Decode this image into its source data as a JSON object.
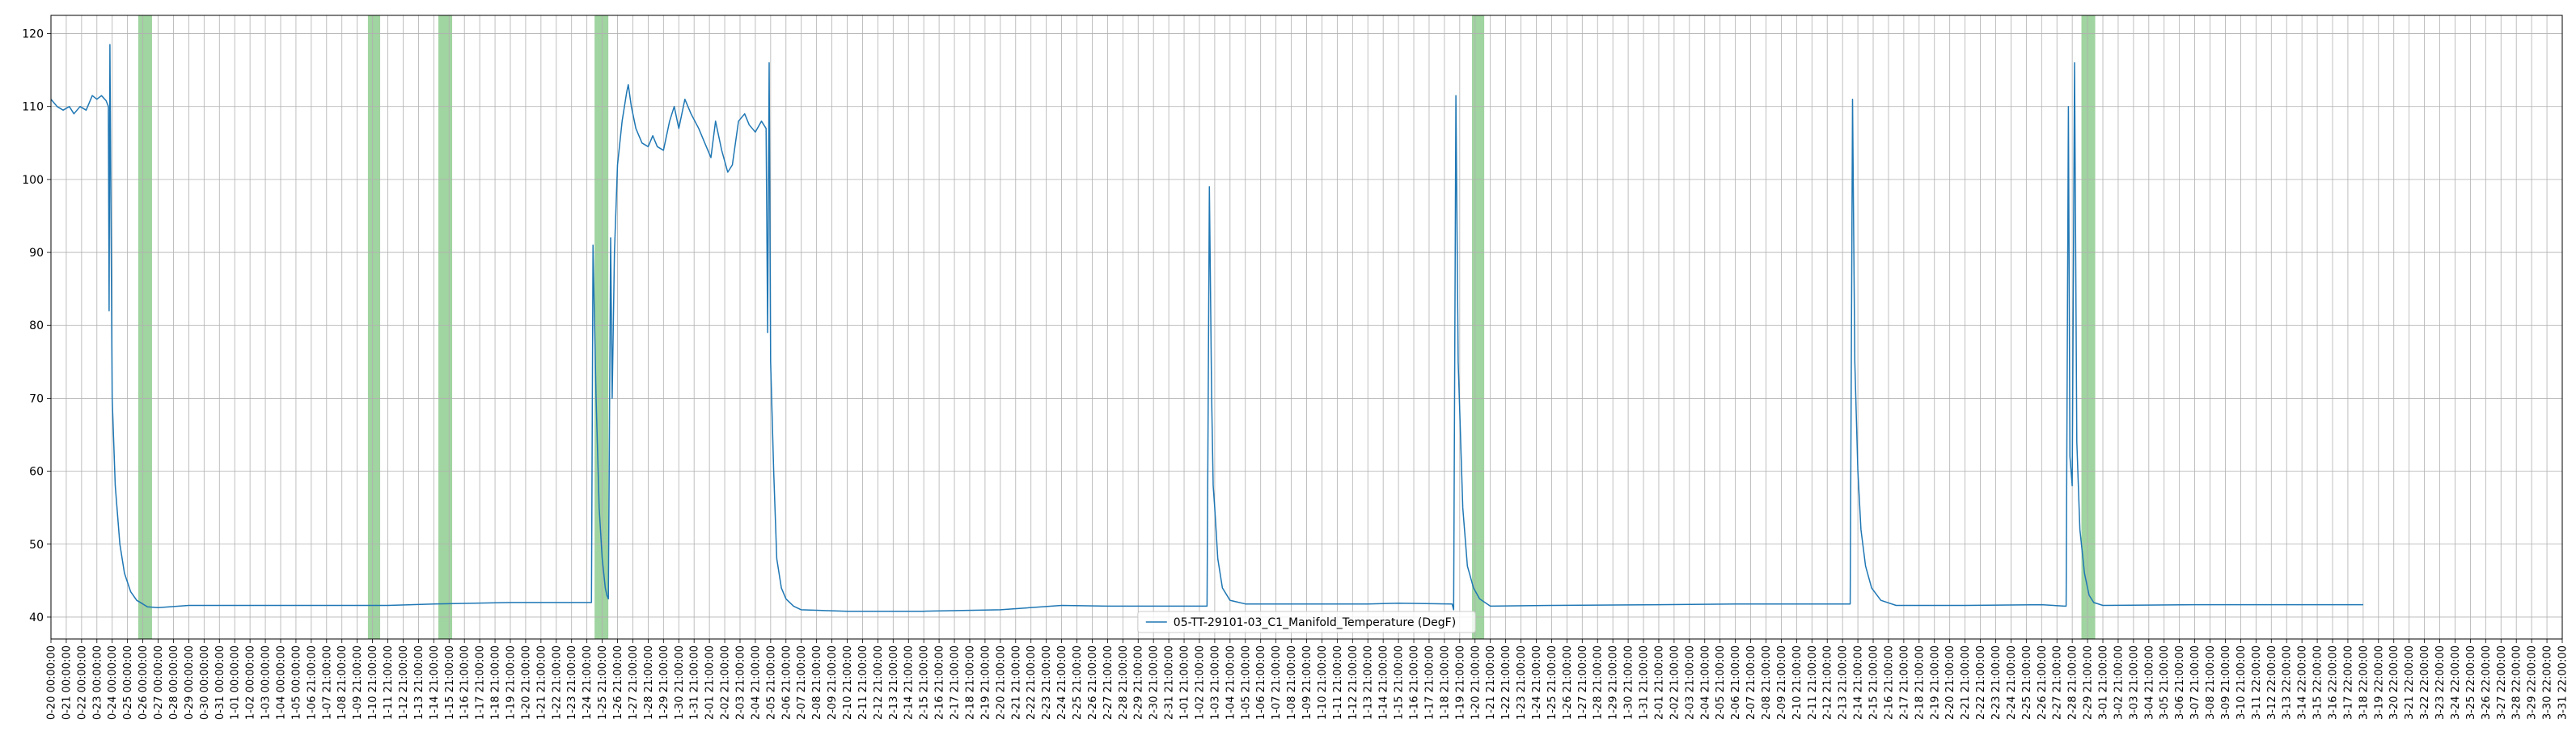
{
  "chart_data": {
    "type": "line",
    "title": "",
    "xlabel": "",
    "ylabel": "",
    "ylim": [
      37,
      122.5
    ],
    "yticks": [
      40,
      50,
      60,
      70,
      80,
      90,
      100,
      110,
      120
    ],
    "grid": true,
    "legend_placement": "bottom-center",
    "x_tick_labels": [
      "0-20 00:00:00",
      "0-21 00:00:00",
      "0-22 00:00:00",
      "0-23 00:00:00",
      "0-24 00:00:00",
      "0-25 00:00:00",
      "0-26 00:00:00",
      "0-27 00:00:00",
      "0-28 00:00:00",
      "0-29 00:00:00",
      "0-30 00:00:00",
      "0-31 00:00:00",
      "1-01 00:00:00",
      "1-02 00:00:00",
      "1-03 00:00:00",
      "1-04 00:00:00",
      "1-05 00:00:00",
      "1-06 21:00:00",
      "1-07 21:00:00",
      "1-08 21:00:00",
      "1-09 21:00:00",
      "1-10 21:00:00",
      "1-11 21:00:00",
      "1-12 21:00:00",
      "1-13 21:00:00",
      "1-14 21:00:00",
      "1-15 21:00:00",
      "1-16 21:00:00",
      "1-17 21:00:00",
      "1-18 21:00:00",
      "1-19 21:00:00",
      "1-20 21:00:00",
      "1-21 21:00:00",
      "1-22 21:00:00",
      "1-23 21:00:00",
      "1-24 21:00:00",
      "1-25 21:00:00",
      "1-26 21:00:00",
      "1-27 21:00:00",
      "1-28 21:00:00",
      "1-29 21:00:00",
      "1-30 21:00:00",
      "1-31 21:00:00",
      "2-01 21:00:00",
      "2-02 21:00:00",
      "2-03 21:00:00",
      "2-04 21:00:00",
      "2-05 21:00:00",
      "2-06 21:00:00",
      "2-07 21:00:00",
      "2-08 21:00:00",
      "2-09 21:00:00",
      "2-10 21:00:00",
      "2-11 21:00:00",
      "2-12 21:00:00",
      "2-13 21:00:00",
      "2-14 21:00:00",
      "2-15 21:00:00",
      "2-16 21:00:00",
      "2-17 21:00:00",
      "2-18 21:00:00",
      "2-19 21:00:00",
      "2-20 21:00:00",
      "2-21 21:00:00",
      "2-22 21:00:00",
      "2-23 21:00:00",
      "2-24 21:00:00",
      "2-25 21:00:00",
      "2-26 21:00:00",
      "2-27 21:00:00",
      "2-28 21:00:00",
      "2-29 21:00:00",
      "2-30 21:00:00",
      "2-31 21:00:00",
      "1-01 21:00:00",
      "1-02 21:00:00",
      "1-03 21:00:00",
      "1-04 21:00:00",
      "1-05 21:00:00",
      "1-06 21:00:00",
      "1-07 21:00:00",
      "1-08 21:00:00",
      "1-09 21:00:00",
      "1-10 21:00:00",
      "1-11 21:00:00",
      "1-12 21:00:00",
      "1-13 21:00:00",
      "1-14 21:00:00",
      "1-15 21:00:00",
      "1-16 21:00:00",
      "1-17 21:00:00",
      "1-18 21:00:00",
      "1-19 21:00:00",
      "1-20 21:00:00",
      "1-21 21:00:00",
      "1-22 21:00:00",
      "1-23 21:00:00",
      "1-24 21:00:00",
      "1-25 21:00:00",
      "1-26 21:00:00",
      "1-27 21:00:00",
      "1-28 21:00:00",
      "1-29 21:00:00",
      "1-30 21:00:00",
      "1-31 21:00:00",
      "2-01 21:00:00",
      "2-02 21:00:00",
      "2-03 21:00:00",
      "2-04 21:00:00",
      "2-05 21:00:00",
      "2-06 21:00:00",
      "2-07 21:00:00",
      "2-08 21:00:00",
      "2-09 21:00:00",
      "2-10 21:00:00",
      "2-11 21:00:00",
      "2-12 21:00:00",
      "2-13 21:00:00",
      "2-14 21:00:00",
      "2-15 21:00:00",
      "2-16 21:00:00",
      "2-17 21:00:00",
      "2-18 21:00:00",
      "2-19 21:00:00",
      "2-20 21:00:00",
      "2-21 21:00:00",
      "2-22 21:00:00",
      "2-23 21:00:00",
      "2-24 21:00:00",
      "2-25 21:00:00",
      "2-26 21:00:00",
      "2-27 21:00:00",
      "2-28 21:00:00",
      "2-29 21:00:00",
      "3-01 21:00:00",
      "3-02 21:00:00",
      "3-03 21:00:00",
      "3-04 21:00:00",
      "3-05 21:00:00",
      "3-06 21:00:00",
      "3-07 21:00:00",
      "3-08 21:00:00",
      "3-09 21:00:00",
      "3-10 21:00:00",
      "3-11 22:00:00",
      "3-12 22:00:00",
      "3-13 22:00:00",
      "3-14 22:00:00",
      "3-15 22:00:00",
      "3-16 22:00:00",
      "3-17 22:00:00",
      "3-18 22:00:00",
      "3-19 22:00:00",
      "3-20 22:00:00",
      "3-21 22:00:00",
      "3-22 22:00:00",
      "3-23 22:00:00",
      "3-24 22:00:00",
      "3-25 22:00:00",
      "3-26 22:00:00",
      "3-27 22:00:00",
      "3-28 22:00:00",
      "3-29 22:00:00",
      "3-30 22:00:00",
      "3-31 22:00:00"
    ],
    "series": [
      {
        "name": "05-TT-29101-03_C1_Manifold_Temperature (DegF)",
        "color": "#1f77b4",
        "points": [
          [
            0,
            111
          ],
          [
            0.4,
            110
          ],
          [
            0.8,
            109.5
          ],
          [
            1.2,
            110
          ],
          [
            1.5,
            109
          ],
          [
            1.9,
            110
          ],
          [
            2.3,
            109.5
          ],
          [
            2.7,
            111.5
          ],
          [
            3.0,
            111
          ],
          [
            3.3,
            111.5
          ],
          [
            3.6,
            110.8
          ],
          [
            3.75,
            110
          ],
          [
            3.8,
            82
          ],
          [
            3.85,
            118.5
          ],
          [
            4.0,
            70
          ],
          [
            4.2,
            58
          ],
          [
            4.5,
            50
          ],
          [
            4.8,
            46
          ],
          [
            5.2,
            43.5
          ],
          [
            5.6,
            42.3
          ],
          [
            6.0,
            41.8
          ],
          [
            6.3,
            41.4
          ],
          [
            7,
            41.3
          ],
          [
            9,
            41.6
          ],
          [
            12,
            41.6
          ],
          [
            17,
            41.6
          ],
          [
            22,
            41.6
          ],
          [
            25,
            41.8
          ],
          [
            30,
            42
          ],
          [
            34,
            42
          ],
          [
            35.3,
            42
          ],
          [
            35.4,
            91
          ],
          [
            35.6,
            70
          ],
          [
            35.8,
            55
          ],
          [
            36.0,
            48
          ],
          [
            36.2,
            44
          ],
          [
            36.3,
            43
          ],
          [
            36.4,
            42.5
          ],
          [
            36.55,
            92
          ],
          [
            36.65,
            70
          ],
          [
            36.8,
            90
          ],
          [
            37.0,
            102
          ],
          [
            37.3,
            108
          ],
          [
            37.6,
            112
          ],
          [
            37.7,
            113
          ],
          [
            37.9,
            110
          ],
          [
            38.2,
            107
          ],
          [
            38.6,
            105
          ],
          [
            39.0,
            104.5
          ],
          [
            39.3,
            106
          ],
          [
            39.6,
            104.5
          ],
          [
            40,
            104
          ],
          [
            40.4,
            108
          ],
          [
            40.7,
            110
          ],
          [
            41,
            107
          ],
          [
            41.4,
            111
          ],
          [
            41.8,
            109
          ],
          [
            42.3,
            107
          ],
          [
            42.7,
            105
          ],
          [
            43.1,
            103
          ],
          [
            43.4,
            108
          ],
          [
            43.8,
            104
          ],
          [
            44.2,
            101
          ],
          [
            44.5,
            102
          ],
          [
            44.9,
            108
          ],
          [
            45.3,
            109
          ],
          [
            45.6,
            107.5
          ],
          [
            46,
            106.5
          ],
          [
            46.4,
            108
          ],
          [
            46.7,
            107
          ],
          [
            46.8,
            79
          ],
          [
            46.9,
            116
          ],
          [
            47.0,
            75
          ],
          [
            47.2,
            60
          ],
          [
            47.4,
            48
          ],
          [
            47.7,
            44
          ],
          [
            48.0,
            42.5
          ],
          [
            48.5,
            41.5
          ],
          [
            49,
            41
          ],
          [
            52,
            40.8
          ],
          [
            57,
            40.8
          ],
          [
            62,
            41
          ],
          [
            66,
            41.6
          ],
          [
            69,
            41.5
          ],
          [
            75.5,
            41.5
          ],
          [
            75.65,
            99
          ],
          [
            75.8,
            70
          ],
          [
            75.9,
            58
          ],
          [
            76.0,
            55
          ],
          [
            76.2,
            48
          ],
          [
            76.5,
            44
          ],
          [
            77,
            42.3
          ],
          [
            78,
            41.8
          ],
          [
            82,
            41.8
          ],
          [
            86,
            41.8
          ],
          [
            88,
            41.9
          ],
          [
            91.5,
            41.8
          ],
          [
            91.6,
            41
          ],
          [
            91.75,
            111.5
          ],
          [
            91.9,
            75
          ],
          [
            92.2,
            55
          ],
          [
            92.5,
            47
          ],
          [
            92.9,
            44
          ],
          [
            93.3,
            42.5
          ],
          [
            94,
            41.5
          ],
          [
            98,
            41.6
          ],
          [
            105,
            41.7
          ],
          [
            110,
            41.8
          ],
          [
            117.5,
            41.8
          ],
          [
            117.65,
            111
          ],
          [
            117.8,
            75
          ],
          [
            118,
            60
          ],
          [
            118.2,
            52
          ],
          [
            118.5,
            47
          ],
          [
            118.9,
            44
          ],
          [
            119.5,
            42.3
          ],
          [
            120.5,
            41.6
          ],
          [
            125,
            41.6
          ],
          [
            130,
            41.7
          ],
          [
            131.5,
            41.5
          ],
          [
            131.6,
            41.5
          ],
          [
            131.75,
            110
          ],
          [
            131.85,
            62
          ],
          [
            132,
            58
          ],
          [
            132.15,
            116
          ],
          [
            132.3,
            64
          ],
          [
            132.5,
            52
          ],
          [
            132.8,
            46
          ],
          [
            133.1,
            43
          ],
          [
            133.4,
            42
          ],
          [
            134,
            41.6
          ],
          [
            140,
            41.7
          ],
          [
            146,
            41.7
          ],
          [
            151,
            41.7
          ]
        ]
      }
    ],
    "highlight_bands": [
      {
        "x_start": 5.7,
        "x_end": 6.6,
        "color": "#2ca02c",
        "opacity": 0.45
      },
      {
        "x_start": 20.7,
        "x_end": 21.5,
        "color": "#2ca02c",
        "opacity": 0.45
      },
      {
        "x_start": 25.3,
        "x_end": 26.2,
        "color": "#2ca02c",
        "opacity": 0.45
      },
      {
        "x_start": 35.5,
        "x_end": 36.4,
        "color": "#2ca02c",
        "opacity": 0.45
      },
      {
        "x_start": 92.8,
        "x_end": 93.6,
        "color": "#2ca02c",
        "opacity": 0.45
      },
      {
        "x_start": 132.6,
        "x_end": 133.5,
        "color": "#2ca02c",
        "opacity": 0.45
      }
    ]
  }
}
